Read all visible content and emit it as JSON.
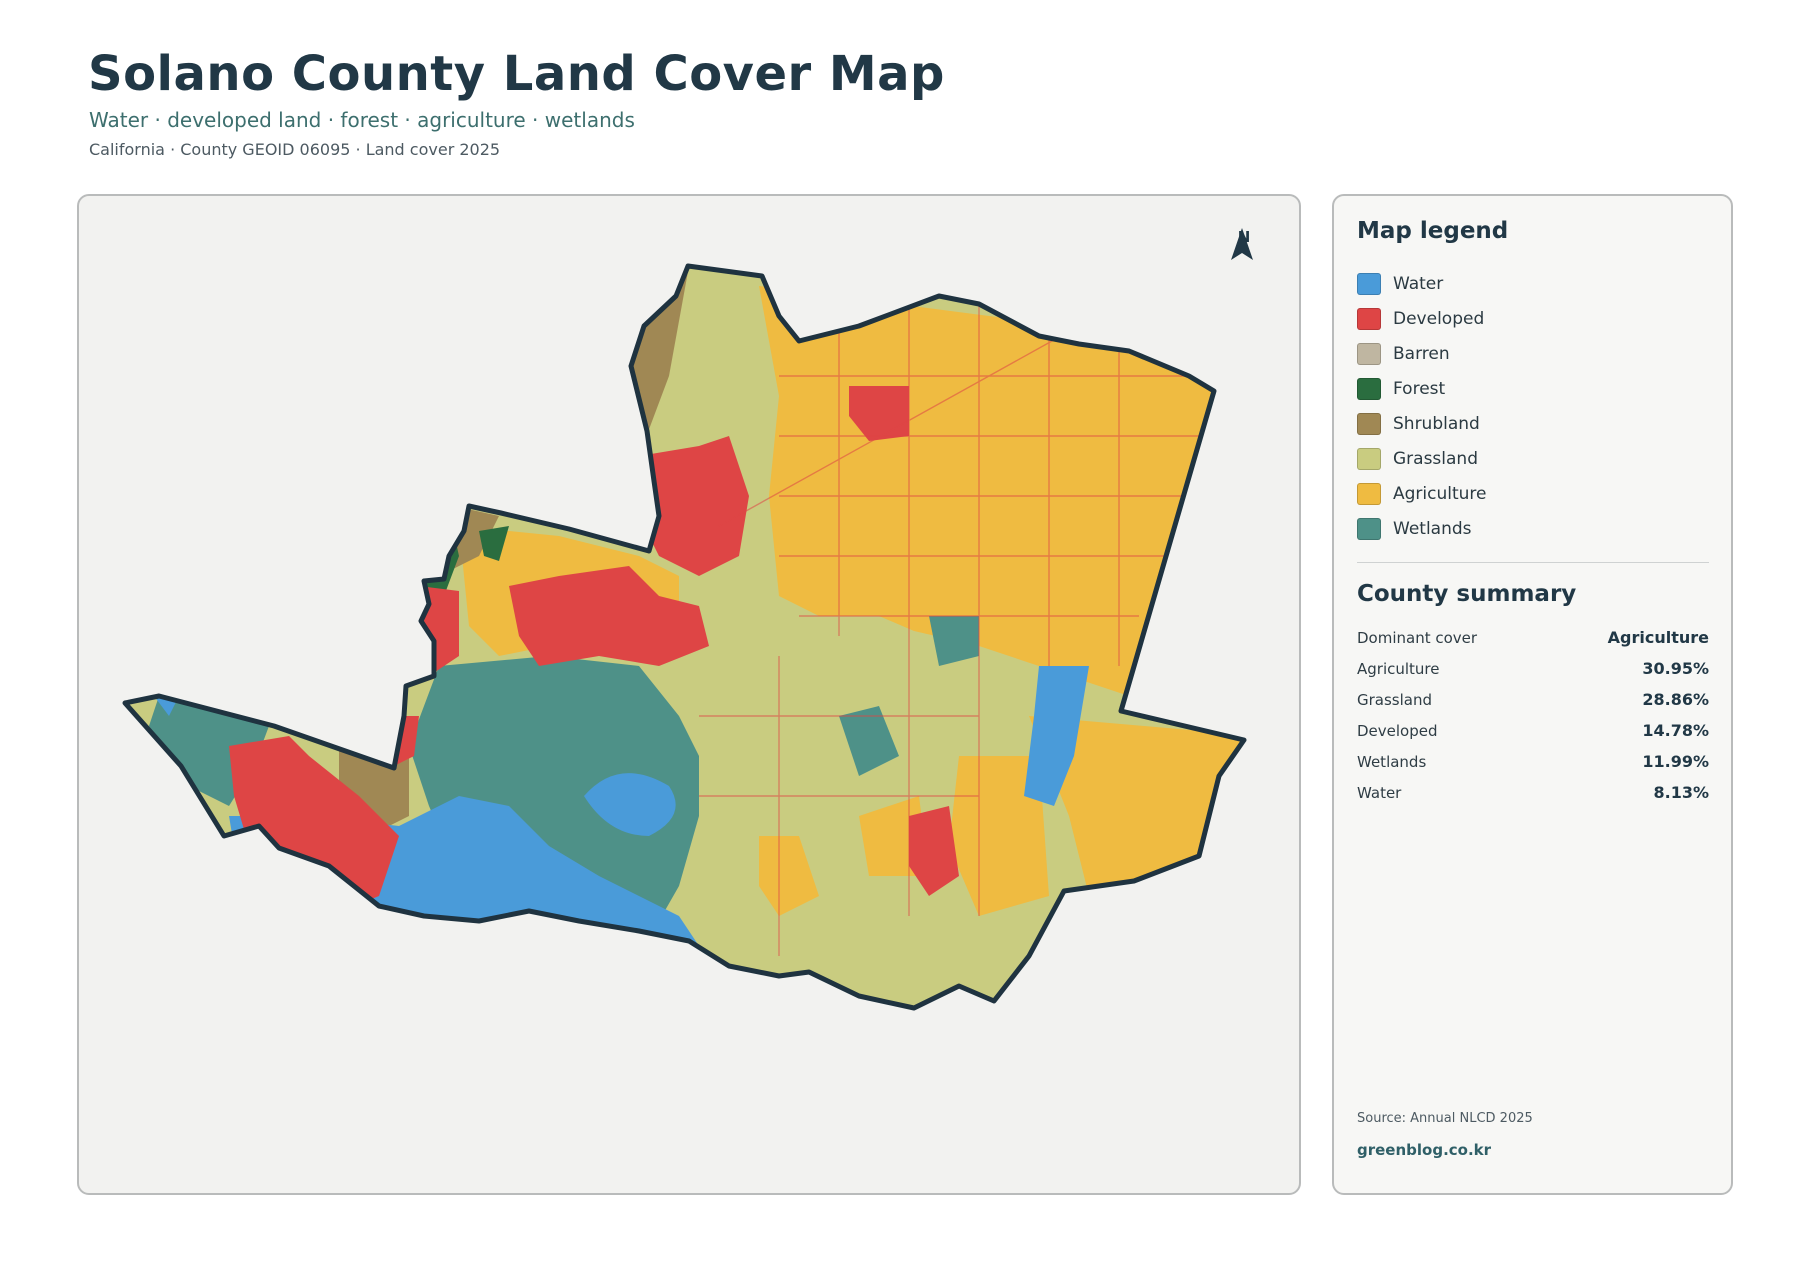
{
  "header": {
    "title": "Solano County Land Cover Map",
    "subtitle": "Water · developed land · forest · agriculture · wetlands",
    "meta": "California · County GEOID 06095 · Land cover 2025"
  },
  "map": {
    "north_label": "N",
    "colors": {
      "water": "#4a9bd9",
      "developed": "#de4545",
      "barren": "#bfb6a1",
      "forest": "#2a6d3f",
      "shrubland": "#a08854",
      "grassland": "#c9cc80",
      "agriculture": "#efbb41",
      "wetlands": "#4e9188",
      "outline": "#1f3340"
    }
  },
  "legend": {
    "title": "Map legend",
    "items": [
      {
        "label": "Water",
        "color": "#4a9bd9"
      },
      {
        "label": "Developed",
        "color": "#de4545"
      },
      {
        "label": "Barren",
        "color": "#bfb6a1"
      },
      {
        "label": "Forest",
        "color": "#2a6d3f"
      },
      {
        "label": "Shrubland",
        "color": "#a08854"
      },
      {
        "label": "Grassland",
        "color": "#c9cc80"
      },
      {
        "label": "Agriculture",
        "color": "#efbb41"
      },
      {
        "label": "Wetlands",
        "color": "#4e9188"
      }
    ]
  },
  "summary": {
    "title": "County summary",
    "rows": [
      {
        "label": "Dominant cover",
        "value": "Agriculture"
      },
      {
        "label": "Agriculture",
        "value": "30.95%"
      },
      {
        "label": "Grassland",
        "value": "28.86%"
      },
      {
        "label": "Developed",
        "value": "14.78%"
      },
      {
        "label": "Wetlands",
        "value": "11.99%"
      },
      {
        "label": "Water",
        "value": "8.13%"
      }
    ]
  },
  "footer": {
    "source": "Source: Annual NLCD 2025",
    "brand": "greenblog.co.kr"
  }
}
